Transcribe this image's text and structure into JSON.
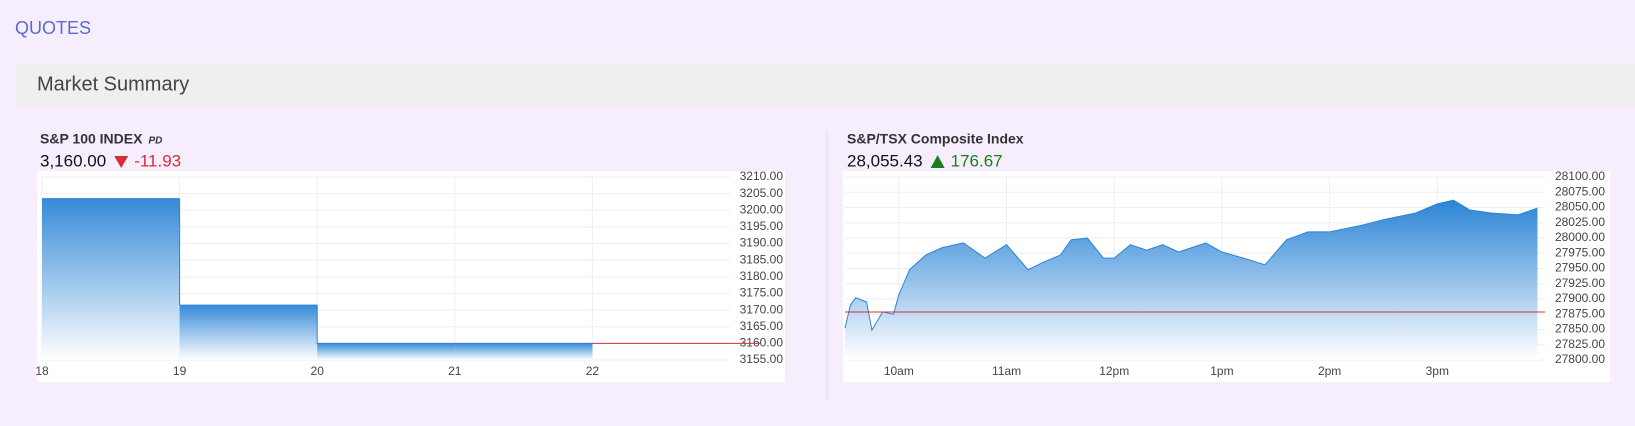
{
  "header": {
    "title": "QUOTES"
  },
  "section": {
    "title": "Market Summary"
  },
  "chart_data": [
    {
      "type": "step",
      "title": "S&P 100 INDEX",
      "badge": "PD",
      "price": "3,160.00",
      "change": "-11.93",
      "change_color": "#d0303a",
      "categories": [
        "18",
        "19",
        "20",
        "21",
        "22"
      ],
      "series": [
        {
          "color": "#2b84d6",
          "values": [
            3203.5,
            3171.5,
            3160,
            3160,
            null
          ]
        }
      ],
      "reference_line": 3160,
      "reference_color": "#d0303a",
      "ylim": [
        3155,
        3210
      ],
      "yticks": [
        {
          "value": 3155,
          "label": "3155.00"
        },
        {
          "value": 3160,
          "label": "3160.00"
        },
        {
          "value": 3165,
          "label": "3165.00"
        },
        {
          "value": 3170,
          "label": "3170.00"
        },
        {
          "value": 3175,
          "label": "3175.00"
        },
        {
          "value": 3180,
          "label": "3180.00"
        },
        {
          "value": 3185,
          "label": "3185.00"
        },
        {
          "value": 3190,
          "label": "3190.00"
        },
        {
          "value": 3195,
          "label": "3195.00"
        },
        {
          "value": 3200,
          "label": "3200.00"
        },
        {
          "value": 3205,
          "label": "3205.00"
        },
        {
          "value": 3210,
          "label": "3210.00"
        }
      ],
      "grid": true
    },
    {
      "type": "area",
      "title": "S&P/TSX Composite Index",
      "price": "28,055.43",
      "change": "176.67",
      "change_color": "#1a7f1a",
      "x": [
        9.5,
        9.55,
        9.6,
        9.7,
        9.75,
        9.85,
        9.95,
        10.0,
        10.1,
        10.25,
        10.4,
        10.6,
        10.8,
        11.0,
        11.2,
        11.35,
        11.5,
        11.6,
        11.75,
        11.9,
        12.0,
        12.15,
        12.3,
        12.45,
        12.6,
        12.85,
        13.0,
        13.2,
        13.4,
        13.6,
        13.8,
        14.0,
        14.3,
        14.5,
        14.8,
        15.0,
        15.15,
        15.3,
        15.5,
        15.75,
        15.93
      ],
      "series": [
        {
          "color": "#2b84d6",
          "values": [
            27852,
            27890,
            27902,
            27895,
            27849,
            27879,
            27875,
            27907,
            27948,
            27972,
            27984,
            27992,
            27967,
            27989,
            27948,
            27961,
            27972,
            27997,
            28000,
            27967,
            27967,
            27989,
            27980,
            27989,
            27977,
            27992,
            27977,
            27967,
            27956,
            27997,
            28010,
            28010,
            28021,
            28030,
            28041,
            28056,
            28062,
            28046,
            28041,
            28038,
            28049
          ]
        }
      ],
      "reference_line": 27878.76,
      "reference_color": "#d0303a",
      "xlim": [
        9.5,
        16
      ],
      "xticks": [
        {
          "value": 10,
          "label": "10am"
        },
        {
          "value": 11,
          "label": "11am"
        },
        {
          "value": 12,
          "label": "12pm"
        },
        {
          "value": 13,
          "label": "1pm"
        },
        {
          "value": 14,
          "label": "2pm"
        },
        {
          "value": 15,
          "label": "3pm"
        }
      ],
      "ylim": [
        27800,
        28100
      ],
      "yticks": [
        {
          "value": 27800,
          "label": "27800.00"
        },
        {
          "value": 27825,
          "label": "27825.00"
        },
        {
          "value": 27850,
          "label": "27850.00"
        },
        {
          "value": 27875,
          "label": "27875.00"
        },
        {
          "value": 27900,
          "label": "27900.00"
        },
        {
          "value": 27925,
          "label": "27925.00"
        },
        {
          "value": 27950,
          "label": "27950.00"
        },
        {
          "value": 27975,
          "label": "27975.00"
        },
        {
          "value": 28000,
          "label": "28000.00"
        },
        {
          "value": 28025,
          "label": "28025.00"
        },
        {
          "value": 28050,
          "label": "28050.00"
        },
        {
          "value": 28075,
          "label": "28075.00"
        },
        {
          "value": 28100,
          "label": "28100.00"
        }
      ],
      "grid": true
    }
  ]
}
